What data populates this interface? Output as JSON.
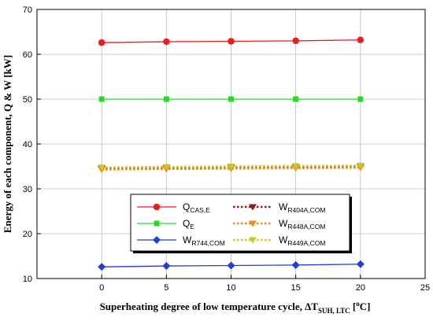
{
  "chart_data": {
    "type": "line",
    "xlabel": {
      "main": "Superheating degree of low temperature cycle, ",
      "delta": "ΔT",
      "sub": "SUH, LTC",
      "unit_open": " [",
      "unit_sup": "o",
      "unit_close": "C]"
    },
    "ylabel": "Energy of each component, Q & W [kW]",
    "xlim": [
      -5,
      25
    ],
    "ylim": [
      10,
      70
    ],
    "xticks": [
      0,
      5,
      10,
      15,
      20,
      25
    ],
    "yticks": [
      10,
      20,
      30,
      40,
      50,
      60,
      70
    ],
    "grid": true,
    "legend_position": "lower-center",
    "x": [
      0,
      5,
      10,
      15,
      20
    ],
    "series": [
      {
        "id": "qcas",
        "name": "Q",
        "sub": "CAS,E",
        "values": [
          62.6,
          62.8,
          62.9,
          63.0,
          63.2
        ],
        "color": "#ee1c1c",
        "marker": "circle",
        "dash": "solid"
      },
      {
        "id": "qe",
        "name": "Q",
        "sub": "E",
        "values": [
          50.0,
          50.0,
          50.0,
          50.0,
          50.0
        ],
        "color": "#22dd22",
        "marker": "square",
        "dash": "solid"
      },
      {
        "id": "wr744",
        "name": "W",
        "sub": "R744,COM",
        "values": [
          12.6,
          12.8,
          12.9,
          13.0,
          13.2
        ],
        "color": "#1f3fd8",
        "marker": "diamond",
        "dash": "solid"
      },
      {
        "id": "wr404a",
        "name": "W",
        "sub": "R404A,COM",
        "values": [
          34.5,
          34.6,
          34.7,
          34.8,
          34.9
        ],
        "color": "#8b1a1a",
        "marker": "triangle-down",
        "dash": "dotted"
      },
      {
        "id": "wr448a",
        "name": "W",
        "sub": "R448A,COM",
        "values": [
          34.3,
          34.4,
          34.5,
          34.6,
          34.7
        ],
        "color": "#f28c18",
        "marker": "triangle-down",
        "dash": "dotted"
      },
      {
        "id": "wr449a",
        "name": "W",
        "sub": "R449A,COM",
        "values": [
          34.8,
          34.9,
          35.0,
          35.1,
          35.2
        ],
        "color": "#c8c820",
        "marker": "triangle-down",
        "dash": "dotted"
      }
    ],
    "legend_columns": [
      [
        "qcas",
        "qe",
        "wr744"
      ],
      [
        "wr404a",
        "wr448a",
        "wr449a"
      ]
    ]
  }
}
